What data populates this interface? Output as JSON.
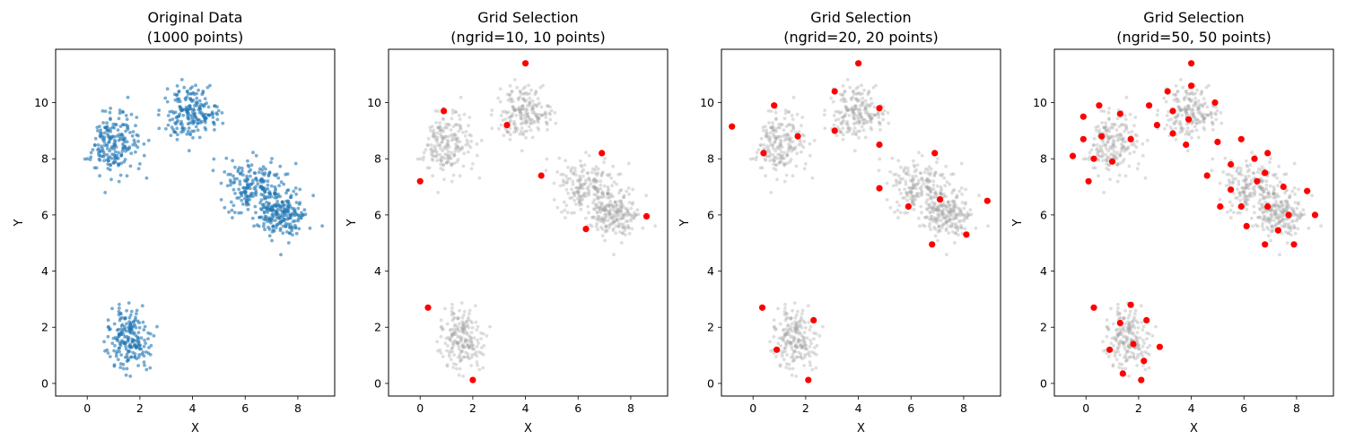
{
  "chart_data": [
    {
      "type": "scatter",
      "title_line1": "Original Data",
      "title_line2": "(1000 points)",
      "xlabel": "X",
      "ylabel": "Y",
      "xlim": [
        -1.2,
        9.4
      ],
      "ylim": [
        -0.45,
        11.9
      ],
      "xticks": [
        0,
        2,
        4,
        6,
        8
      ],
      "yticks": [
        0,
        2,
        4,
        6,
        8,
        10
      ],
      "grid": false,
      "point_color": "#1f77b4",
      "clusters": [
        {
          "center": [
            1.0,
            8.6
          ],
          "spread": [
            0.48,
            0.55
          ],
          "n": 200
        },
        {
          "center": [
            3.9,
            9.6
          ],
          "spread": [
            0.55,
            0.45
          ],
          "n": 200
        },
        {
          "center": [
            6.3,
            7.0
          ],
          "spread": [
            0.6,
            0.5
          ],
          "n": 200
        },
        {
          "center": [
            7.4,
            6.0
          ],
          "spread": [
            0.45,
            0.45
          ],
          "n": 200
        },
        {
          "center": [
            1.6,
            1.6
          ],
          "spread": [
            0.4,
            0.55
          ],
          "n": 200
        }
      ]
    },
    {
      "type": "scatter",
      "title_line1": "Grid Selection",
      "title_line2": "(ngrid=10, 10 points)",
      "xlabel": "X",
      "ylabel": "Y",
      "xlim": [
        -1.2,
        9.4
      ],
      "ylim": [
        -0.45,
        11.9
      ],
      "xticks": [
        0,
        2,
        4,
        6,
        8
      ],
      "yticks": [
        0,
        2,
        4,
        6,
        8,
        10
      ],
      "grid": false,
      "background_color": "#a0a0a0",
      "selected_color": "#ff0000",
      "selected": [
        [
          0.9,
          9.7
        ],
        [
          0.0,
          7.2
        ],
        [
          3.3,
          9.2
        ],
        [
          4.0,
          11.4
        ],
        [
          4.6,
          7.4
        ],
        [
          6.9,
          8.2
        ],
        [
          6.3,
          5.5
        ],
        [
          8.6,
          5.95
        ],
        [
          0.3,
          2.7
        ],
        [
          2.0,
          0.12
        ]
      ]
    },
    {
      "type": "scatter",
      "title_line1": "Grid Selection",
      "title_line2": "(ngrid=20, 20 points)",
      "xlabel": "X",
      "ylabel": "Y",
      "xlim": [
        -1.2,
        9.4
      ],
      "ylim": [
        -0.45,
        11.9
      ],
      "xticks": [
        0,
        2,
        4,
        6,
        8
      ],
      "yticks": [
        0,
        2,
        4,
        6,
        8,
        10
      ],
      "grid": false,
      "background_color": "#a0a0a0",
      "selected_color": "#ff0000",
      "selected": [
        [
          -0.8,
          9.15
        ],
        [
          0.8,
          9.9
        ],
        [
          0.4,
          8.2
        ],
        [
          1.7,
          8.8
        ],
        [
          3.1,
          10.4
        ],
        [
          4.0,
          11.4
        ],
        [
          3.1,
          9.0
        ],
        [
          4.8,
          9.8
        ],
        [
          4.8,
          8.5
        ],
        [
          6.9,
          8.2
        ],
        [
          4.8,
          6.95
        ],
        [
          5.9,
          6.3
        ],
        [
          7.1,
          6.55
        ],
        [
          6.8,
          4.95
        ],
        [
          8.1,
          5.3
        ],
        [
          8.9,
          6.5
        ],
        [
          0.35,
          2.7
        ],
        [
          0.9,
          1.2
        ],
        [
          2.3,
          2.25
        ],
        [
          2.1,
          0.12
        ]
      ]
    },
    {
      "type": "scatter",
      "title_line1": "Grid Selection",
      "title_line2": "(ngrid=50, 50 points)",
      "xlabel": "X",
      "ylabel": "Y",
      "xlim": [
        -1.2,
        9.4
      ],
      "ylim": [
        -0.45,
        11.9
      ],
      "xticks": [
        0,
        2,
        4,
        6,
        8
      ],
      "yticks": [
        0,
        2,
        4,
        6,
        8,
        10
      ],
      "grid": false,
      "background_color": "#a0a0a0",
      "selected_color": "#ff0000",
      "selected": [
        [
          -0.1,
          9.5
        ],
        [
          0.5,
          9.9
        ],
        [
          1.3,
          9.6
        ],
        [
          -0.1,
          8.7
        ],
        [
          0.6,
          8.8
        ],
        [
          1.7,
          8.7
        ],
        [
          -0.5,
          8.1
        ],
        [
          0.3,
          8.0
        ],
        [
          1.0,
          7.9
        ],
        [
          0.1,
          7.2
        ],
        [
          2.4,
          9.9
        ],
        [
          3.1,
          10.4
        ],
        [
          4.0,
          11.4
        ],
        [
          4.0,
          10.6
        ],
        [
          4.9,
          10.0
        ],
        [
          3.3,
          9.7
        ],
        [
          3.9,
          9.4
        ],
        [
          2.7,
          9.2
        ],
        [
          3.3,
          8.9
        ],
        [
          3.8,
          8.5
        ],
        [
          5.0,
          8.6
        ],
        [
          5.9,
          8.7
        ],
        [
          6.9,
          8.2
        ],
        [
          6.4,
          8.0
        ],
        [
          6.8,
          7.5
        ],
        [
          4.6,
          7.4
        ],
        [
          5.5,
          7.8
        ],
        [
          6.5,
          7.2
        ],
        [
          5.5,
          6.9
        ],
        [
          7.5,
          7.0
        ],
        [
          5.1,
          6.3
        ],
        [
          5.9,
          6.3
        ],
        [
          6.9,
          6.3
        ],
        [
          7.7,
          6.0
        ],
        [
          8.4,
          6.85
        ],
        [
          8.7,
          6.0
        ],
        [
          6.1,
          5.6
        ],
        [
          7.3,
          5.45
        ],
        [
          6.8,
          4.95
        ],
        [
          7.9,
          4.95
        ],
        [
          0.3,
          2.7
        ],
        [
          1.7,
          2.8
        ],
        [
          1.3,
          2.15
        ],
        [
          2.3,
          2.25
        ],
        [
          1.8,
          1.4
        ],
        [
          2.8,
          1.3
        ],
        [
          0.9,
          1.2
        ],
        [
          2.2,
          0.8
        ],
        [
          1.4,
          0.35
        ],
        [
          2.1,
          0.12
        ]
      ]
    }
  ]
}
